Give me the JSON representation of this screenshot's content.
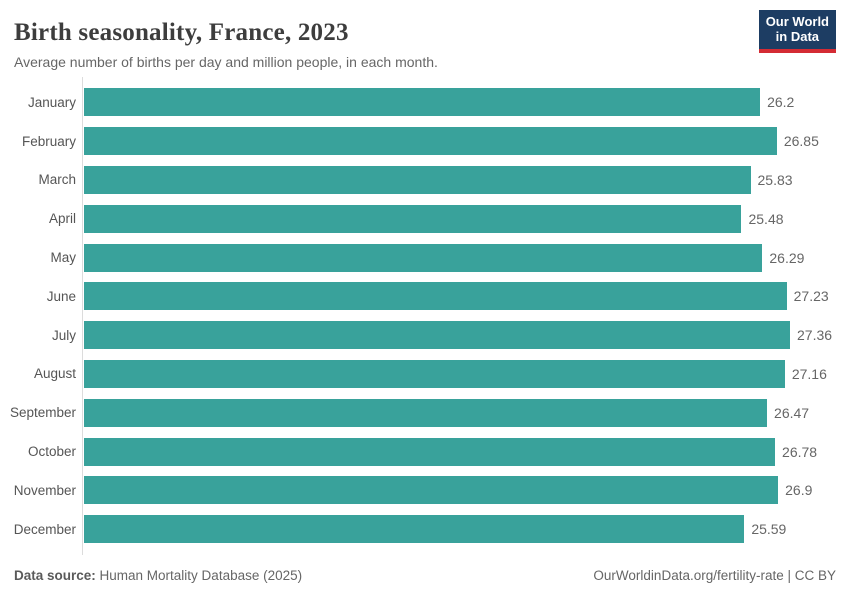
{
  "header": {
    "title": "Birth seasonality, France, 2023",
    "subtitle": "Average number of births per day and million people, in each month.",
    "logo": {
      "line1": "Our World",
      "line2": "in Data"
    }
  },
  "chart_data": {
    "type": "bar",
    "orientation": "horizontal",
    "title": "Birth seasonality, France, 2023",
    "subtitle": "Average number of births per day and million people, in each month.",
    "categories": [
      "January",
      "February",
      "March",
      "April",
      "May",
      "June",
      "July",
      "August",
      "September",
      "October",
      "November",
      "December"
    ],
    "values": [
      26.2,
      26.85,
      25.83,
      25.48,
      26.29,
      27.23,
      27.36,
      27.16,
      26.47,
      26.78,
      26.9,
      25.59
    ],
    "value_labels": [
      "26.2",
      "26.85",
      "25.83",
      "25.48",
      "26.29",
      "27.23",
      "27.36",
      "27.16",
      "26.47",
      "26.78",
      "26.9",
      "25.59"
    ],
    "xlim": [
      0,
      27.36
    ],
    "bar_color": "#39a29b",
    "grid": false,
    "legend": "none"
  },
  "footer": {
    "source_label": "Data source:",
    "source_value": " Human Mortality Database (2025)",
    "attribution": "OurWorldinData.org/fertility-rate | CC BY"
  }
}
